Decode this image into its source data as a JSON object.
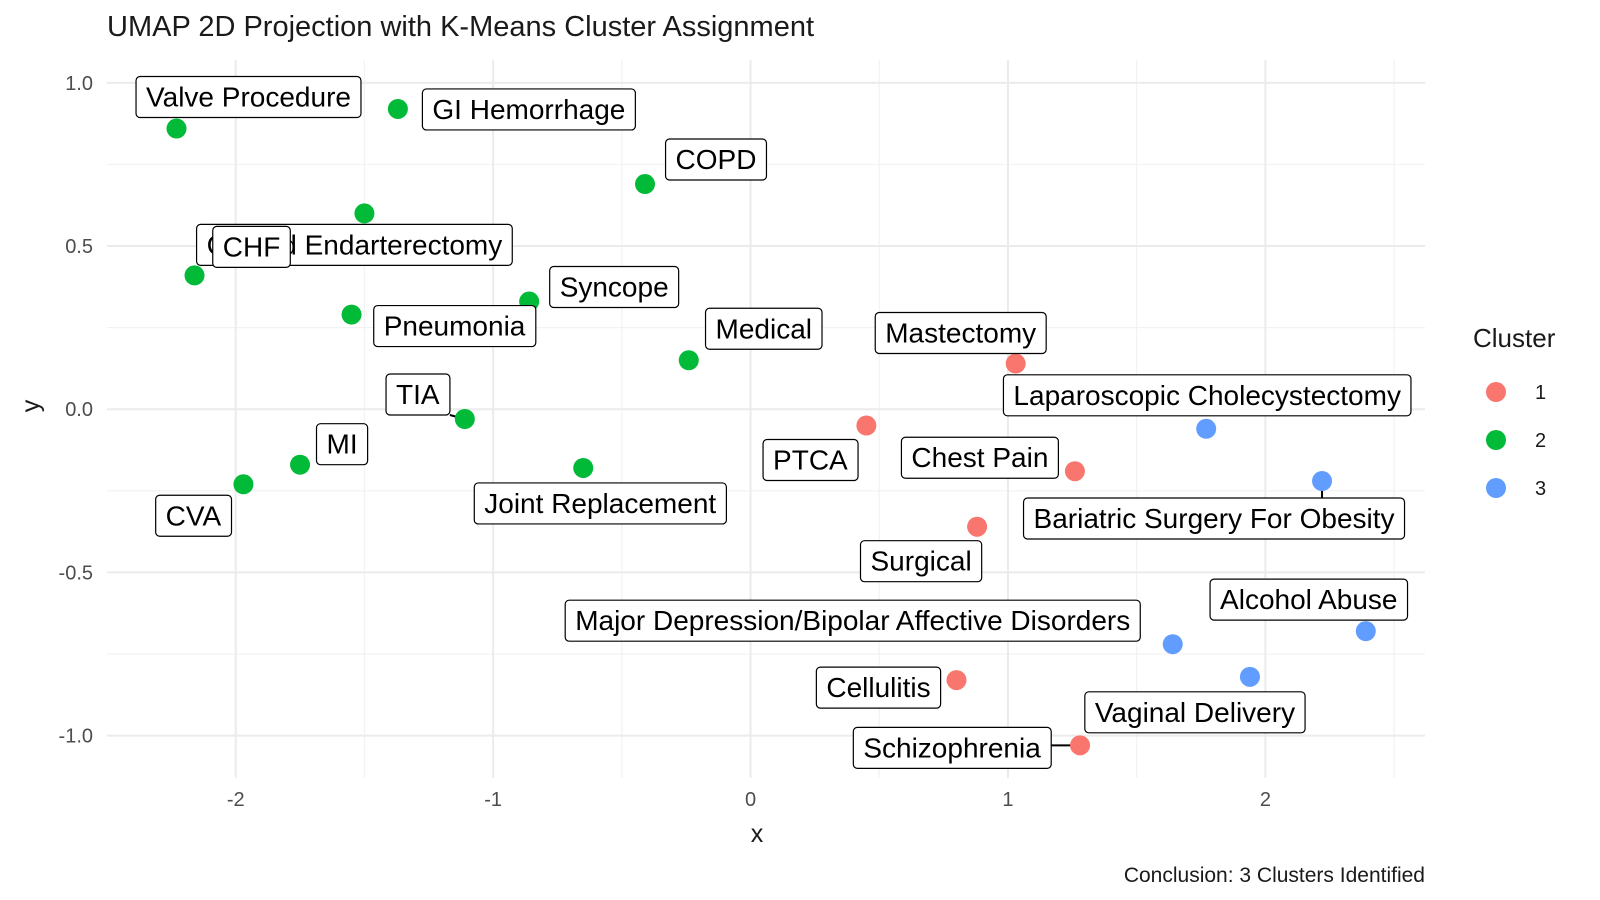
{
  "chart_data": {
    "type": "scatter",
    "title": "UMAP 2D Projection with K-Means Cluster Assignment",
    "xlabel": "x",
    "ylabel": "y",
    "caption": "Conclusion: 3 Clusters Identified",
    "xlim": [
      -2.5,
      2.62
    ],
    "ylim": [
      -1.13,
      1.07
    ],
    "x_ticks": [
      -2,
      -1,
      0,
      1,
      2
    ],
    "x_tick_labels": [
      "-2",
      "-1",
      "0",
      "1",
      "2"
    ],
    "y_ticks": [
      -1.0,
      -0.5,
      0.0,
      0.5,
      1.0
    ],
    "y_tick_labels": [
      "-1.0",
      "-0.5",
      "0.0",
      "0.5",
      "1.0"
    ],
    "grid": true,
    "legend": {
      "title": "Cluster",
      "position": "right",
      "entries": [
        {
          "label": "1",
          "color": "#F8766D"
        },
        {
          "label": "2",
          "color": "#00BA38"
        },
        {
          "label": "3",
          "color": "#619CFF"
        }
      ]
    },
    "points": [
      {
        "label": "Valve Procedure",
        "x": -2.23,
        "y": 0.86,
        "cluster": "2"
      },
      {
        "label": "GI Hemorrhage",
        "x": -1.37,
        "y": 0.92,
        "cluster": "2"
      },
      {
        "label": "Carotid Endarterectomy",
        "x": -1.5,
        "y": 0.6,
        "cluster": "2"
      },
      {
        "label": "COPD",
        "x": -0.41,
        "y": 0.69,
        "cluster": "2"
      },
      {
        "label": "Pneumonia",
        "x": -1.55,
        "y": 0.29,
        "cluster": "2"
      },
      {
        "label": "CHF",
        "x": -2.16,
        "y": 0.41,
        "cluster": "2"
      },
      {
        "label": "MI",
        "x": -1.75,
        "y": -0.17,
        "cluster": "2"
      },
      {
        "label": "Syncope",
        "x": -0.86,
        "y": 0.33,
        "cluster": "2"
      },
      {
        "label": "Medical",
        "x": -0.24,
        "y": 0.15,
        "cluster": "2"
      },
      {
        "label": "TIA",
        "x": -1.11,
        "y": -0.03,
        "cluster": "2"
      },
      {
        "label": "CVA",
        "x": -1.97,
        "y": -0.23,
        "cluster": "2"
      },
      {
        "label": "Joint Replacement",
        "x": -0.65,
        "y": -0.18,
        "cluster": "2"
      },
      {
        "label": "Mastectomy",
        "x": 1.03,
        "y": 0.14,
        "cluster": "1"
      },
      {
        "label": "PTCA",
        "x": 0.45,
        "y": -0.05,
        "cluster": "1"
      },
      {
        "label": "Chest Pain",
        "x": 1.26,
        "y": -0.19,
        "cluster": "1"
      },
      {
        "label": "Surgical",
        "x": 0.88,
        "y": -0.36,
        "cluster": "1"
      },
      {
        "label": "Cellulitis",
        "x": 0.8,
        "y": -0.83,
        "cluster": "1"
      },
      {
        "label": "Schizophrenia",
        "x": 1.28,
        "y": -1.03,
        "cluster": "1"
      },
      {
        "label": "Laparoscopic Cholecystectomy",
        "x": 1.77,
        "y": -0.06,
        "cluster": "3"
      },
      {
        "label": "Bariatric Surgery For Obesity",
        "x": 2.22,
        "y": -0.22,
        "cluster": "3"
      },
      {
        "label": "Alcohol Abuse",
        "x": 2.39,
        "y": -0.68,
        "cluster": "3"
      },
      {
        "label": "Major Depression/Bipolar Affective Disorders",
        "x": 1.64,
        "y": -0.72,
        "cluster": "3"
      },
      {
        "label": "Vaginal Delivery",
        "x": 1.94,
        "y": -0.82,
        "cluster": "3"
      }
    ]
  }
}
